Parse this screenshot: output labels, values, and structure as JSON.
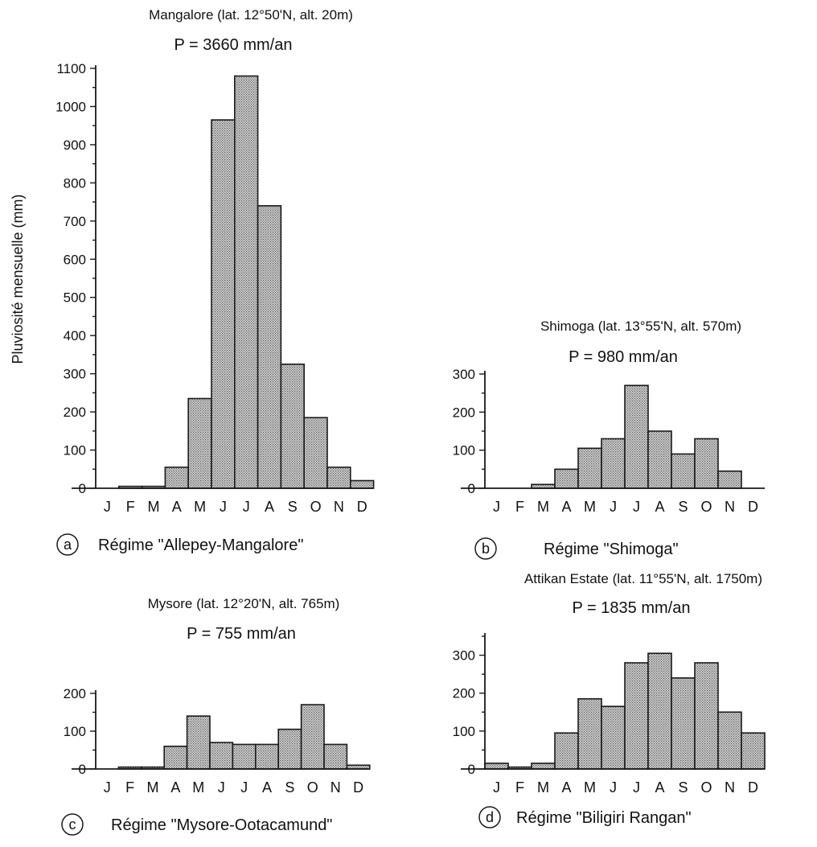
{
  "y_axis_label": "Pluviosité mensuelle (mm)",
  "colors": {
    "bar_fill": "#c4c4c4",
    "bar_stroke": "#1a1a1a",
    "axis": "#1a1a1a"
  },
  "panels": [
    {
      "id": "a",
      "caption_letter": "a",
      "caption": "Régime \"Allepey-Mangalore\"",
      "title": "Mangalore (lat. 12°50'N, alt. 20m)",
      "subtitle": "P = 3660 mm/an"
    },
    {
      "id": "b",
      "caption_letter": "b",
      "caption": "Régime \"Shimoga\"",
      "title": "Shimoga (lat. 13°55'N, alt. 570m)",
      "subtitle": "P = 980 mm/an"
    },
    {
      "id": "c",
      "caption_letter": "c",
      "caption": "Régime \"Mysore-Ootacamund\"",
      "title": "Mysore (lat. 12°20'N, alt. 765m)",
      "subtitle": "P = 755 mm/an"
    },
    {
      "id": "d",
      "caption_letter": "d",
      "caption": "Régime \"Biligiri Rangan\"",
      "title": "Attikan Estate (lat. 11°55'N, alt. 1750m)",
      "subtitle": "P = 1835 mm/an"
    }
  ],
  "chart_data": [
    {
      "type": "bar",
      "title": "Mangalore (lat. 12°50'N, alt. 20m)",
      "categories": [
        "J",
        "F",
        "M",
        "A",
        "M",
        "J",
        "J",
        "A",
        "S",
        "O",
        "N",
        "D"
      ],
      "values": [
        0,
        5,
        5,
        55,
        235,
        965,
        1080,
        740,
        325,
        185,
        55,
        20
      ],
      "ylabel": "Pluviosité mensuelle (mm)",
      "ylim": [
        0,
        1100
      ],
      "yticks": [
        0,
        100,
        200,
        300,
        400,
        500,
        600,
        700,
        800,
        900,
        1000,
        1100
      ]
    },
    {
      "type": "bar",
      "title": "Shimoga (lat. 13°55'N, alt. 570m)",
      "categories": [
        "J",
        "F",
        "M",
        "A",
        "M",
        "J",
        "J",
        "A",
        "S",
        "O",
        "N",
        "D"
      ],
      "values": [
        0,
        0,
        10,
        50,
        105,
        130,
        270,
        150,
        90,
        130,
        45,
        0
      ],
      "ylim": [
        0,
        300
      ],
      "yticks": [
        0,
        100,
        200,
        300
      ]
    },
    {
      "type": "bar",
      "title": "Mysore (lat. 12°20'N, alt. 765m)",
      "categories": [
        "J",
        "F",
        "M",
        "A",
        "M",
        "J",
        "J",
        "A",
        "S",
        "O",
        "N",
        "D"
      ],
      "values": [
        0,
        5,
        5,
        60,
        140,
        70,
        65,
        65,
        105,
        170,
        65,
        10
      ],
      "ylim": [
        0,
        200
      ],
      "yticks": [
        0,
        100,
        200
      ]
    },
    {
      "type": "bar",
      "title": "Attikan Estate (lat. 11°55'N, alt. 1750m)",
      "categories": [
        "J",
        "F",
        "M",
        "A",
        "M",
        "J",
        "J",
        "A",
        "S",
        "O",
        "N",
        "D"
      ],
      "values": [
        15,
        5,
        15,
        95,
        185,
        165,
        280,
        305,
        240,
        280,
        150,
        95
      ],
      "ylim": [
        0,
        350
      ],
      "yticks": [
        0,
        100,
        200,
        300
      ]
    }
  ]
}
